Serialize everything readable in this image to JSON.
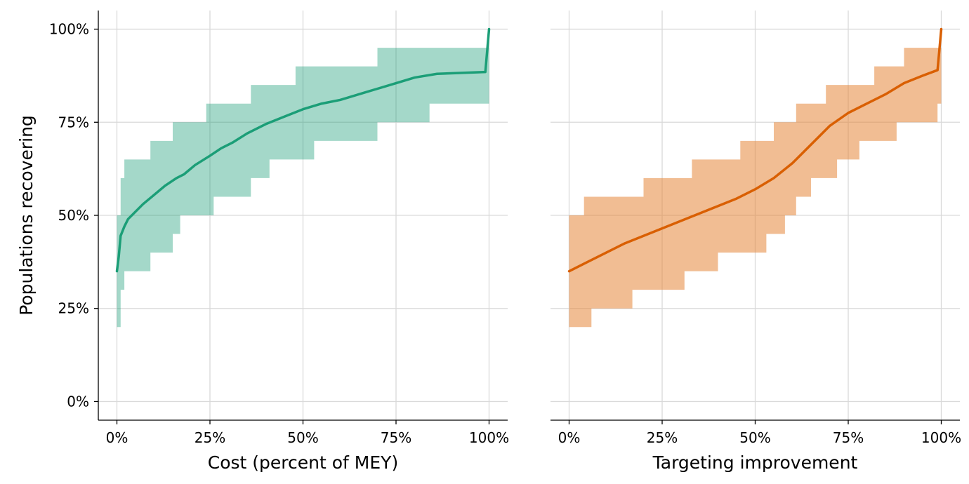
{
  "chart_data": [
    {
      "type": "line",
      "title": "",
      "xlabel": "Cost (percent of MEY)",
      "ylabel": "Populations recovering",
      "xlim": [
        -0.05,
        1.05
      ],
      "ylim": [
        -0.05,
        1.05
      ],
      "x_ticks": [
        0,
        0.25,
        0.5,
        0.75,
        1.0
      ],
      "x_tick_labels": [
        "0%",
        "25%",
        "50%",
        "75%",
        "100%"
      ],
      "y_ticks": [
        0,
        0.25,
        0.5,
        0.75,
        1.0
      ],
      "y_tick_labels": [
        "0%",
        "25%",
        "50%",
        "75%",
        "100%"
      ],
      "grid": true,
      "color": "#1b9e77",
      "band_color": "#1b9e77",
      "band_opacity": 0.4,
      "series": [
        {
          "x": [
            0,
            0.005,
            0.01,
            0.02,
            0.03,
            0.05,
            0.07,
            0.1,
            0.13,
            0.16,
            0.18,
            0.21,
            0.25,
            0.28,
            0.31,
            0.35,
            0.4,
            0.45,
            0.5,
            0.55,
            0.6,
            0.65,
            0.7,
            0.75,
            0.8,
            0.86,
            0.99,
            1.0
          ],
          "y": [
            0.35,
            0.39,
            0.445,
            0.47,
            0.49,
            0.51,
            0.53,
            0.555,
            0.58,
            0.6,
            0.61,
            0.635,
            0.66,
            0.68,
            0.695,
            0.72,
            0.745,
            0.765,
            0.785,
            0.8,
            0.81,
            0.825,
            0.84,
            0.855,
            0.87,
            0.88,
            0.885,
            1.0
          ]
        }
      ],
      "band": {
        "x": [
          0,
          0.01,
          0.02,
          0.05,
          0.09,
          0.15,
          0.17,
          0.24,
          0.26,
          0.33,
          0.36,
          0.41,
          0.48,
          0.53,
          0.68,
          0.7,
          0.83,
          0.84,
          0.99,
          1.0
        ],
        "upper": [
          0.5,
          0.6,
          0.65,
          0.65,
          0.7,
          0.75,
          0.75,
          0.8,
          0.8,
          0.8,
          0.85,
          0.85,
          0.9,
          0.9,
          0.9,
          0.95,
          0.95,
          0.95,
          0.95,
          1.0
        ],
        "lower": [
          0.2,
          0.3,
          0.35,
          0.35,
          0.4,
          0.45,
          0.5,
          0.5,
          0.55,
          0.55,
          0.6,
          0.65,
          0.65,
          0.7,
          0.7,
          0.75,
          0.75,
          0.8,
          0.8,
          1.0
        ]
      }
    },
    {
      "type": "line",
      "title": "",
      "xlabel": "Targeting improvement",
      "ylabel": "",
      "xlim": [
        -0.05,
        1.05
      ],
      "ylim": [
        -0.05,
        1.05
      ],
      "x_ticks": [
        0,
        0.25,
        0.5,
        0.75,
        1.0
      ],
      "x_tick_labels": [
        "0%",
        "25%",
        "50%",
        "75%",
        "100%"
      ],
      "y_ticks": [
        0,
        0.25,
        0.5,
        0.75,
        1.0
      ],
      "grid": true,
      "color": "#d95f02",
      "band_color": "#e6863a",
      "band_opacity": 0.55,
      "series": [
        {
          "x": [
            0,
            0.05,
            0.1,
            0.15,
            0.2,
            0.25,
            0.3,
            0.35,
            0.4,
            0.45,
            0.5,
            0.55,
            0.6,
            0.65,
            0.7,
            0.75,
            0.8,
            0.85,
            0.9,
            0.95,
            0.99,
            1.0
          ],
          "y": [
            0.35,
            0.375,
            0.4,
            0.425,
            0.445,
            0.465,
            0.485,
            0.505,
            0.525,
            0.545,
            0.57,
            0.6,
            0.64,
            0.69,
            0.74,
            0.775,
            0.8,
            0.825,
            0.855,
            0.875,
            0.89,
            1.0
          ]
        }
      ],
      "band": {
        "x": [
          0,
          0.04,
          0.06,
          0.17,
          0.2,
          0.31,
          0.33,
          0.4,
          0.46,
          0.53,
          0.55,
          0.58,
          0.61,
          0.65,
          0.69,
          0.72,
          0.78,
          0.82,
          0.88,
          0.9,
          0.96,
          0.99,
          1.0
        ],
        "upper": [
          0.5,
          0.55,
          0.55,
          0.55,
          0.6,
          0.6,
          0.65,
          0.65,
          0.7,
          0.7,
          0.75,
          0.75,
          0.8,
          0.8,
          0.85,
          0.85,
          0.85,
          0.9,
          0.9,
          0.95,
          0.95,
          0.95,
          1.0
        ],
        "lower": [
          0.2,
          0.2,
          0.25,
          0.3,
          0.3,
          0.35,
          0.35,
          0.4,
          0.4,
          0.45,
          0.45,
          0.5,
          0.55,
          0.6,
          0.6,
          0.65,
          0.7,
          0.7,
          0.75,
          0.75,
          0.75,
          0.8,
          1.0
        ]
      }
    }
  ]
}
